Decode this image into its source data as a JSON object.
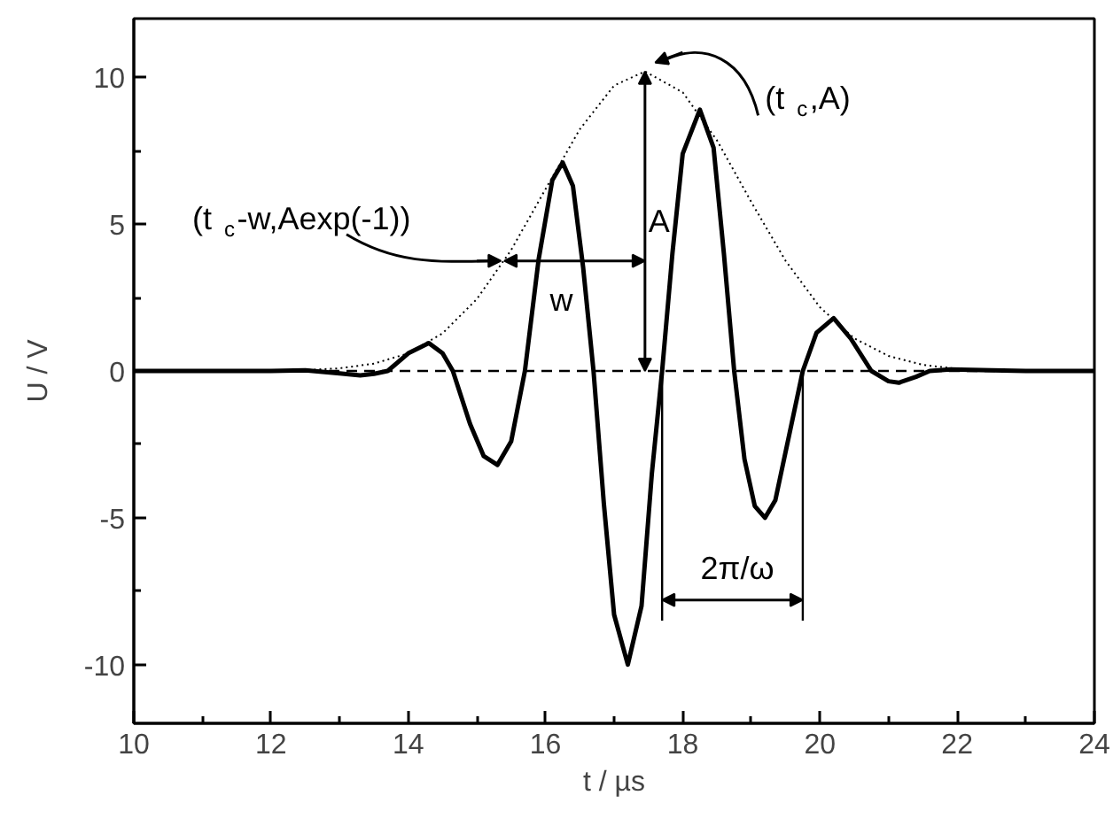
{
  "chart_data": {
    "type": "line",
    "xlabel": "t / µs",
    "ylabel": "U / V",
    "xlim": [
      10,
      24
    ],
    "ylim": [
      -12,
      12
    ],
    "xticks": [
      10,
      {
        "value": 11,
        "label": null
      },
      12,
      {
        "value": 13,
        "label": null
      },
      14,
      {
        "value": 15,
        "label": null
      },
      16,
      {
        "value": 17,
        "label": null
      },
      18,
      {
        "value": 19,
        "label": null
      },
      20,
      {
        "value": 21,
        "label": null
      },
      22,
      {
        "value": 23,
        "label": null
      },
      24
    ],
    "yticks": [
      {
        "value": -10,
        "label": "-10"
      },
      {
        "value": -7.5,
        "label": null
      },
      {
        "value": -5,
        "label": "-5"
      },
      {
        "value": -2.5,
        "label": null
      },
      0,
      {
        "value": 2.5,
        "label": null
      },
      5,
      {
        "value": 7.5,
        "label": null
      },
      10
    ],
    "series": [
      {
        "color": "#000000",
        "line_style": "solid",
        "x": [
          10,
          11,
          12,
          12.5,
          13.0,
          13.3,
          13.5,
          13.7,
          14.0,
          14.3,
          14.5,
          14.65,
          14.9,
          15.1,
          15.3,
          15.5,
          15.7,
          15.9,
          16.1,
          16.25,
          16.4,
          16.55,
          16.7,
          16.85,
          17.0,
          17.2,
          17.4,
          17.55,
          17.7,
          17.85,
          18.0,
          18.25,
          18.45,
          18.6,
          18.75,
          18.9,
          19.05,
          19.2,
          19.35,
          19.55,
          19.75,
          19.95,
          20.2,
          20.45,
          20.75,
          21.0,
          21.15,
          21.4,
          21.6,
          21.9,
          22.5,
          23,
          24
        ],
        "values": [
          0,
          0,
          0,
          0.02,
          -0.08,
          -0.15,
          -0.1,
          0,
          0.6,
          0.95,
          0.6,
          0,
          -1.8,
          -2.9,
          -3.2,
          -2.4,
          0,
          3.8,
          6.5,
          7.1,
          6.3,
          3.5,
          0,
          -4.5,
          -8.3,
          -10.0,
          -8.0,
          -3.5,
          0,
          4.0,
          7.4,
          8.9,
          7.6,
          4.0,
          0,
          -3.0,
          -4.6,
          -5.0,
          -4.4,
          -2.2,
          0,
          1.3,
          1.8,
          1.1,
          0,
          -0.35,
          -0.4,
          -0.2,
          0,
          0.05,
          0.02,
          0,
          0
        ]
      },
      {
        "color": "#000000",
        "line_style": "dotted",
        "x": [
          11,
          12,
          12.5,
          13,
          13.5,
          14,
          14.5,
          15,
          15.5,
          16,
          16.5,
          17,
          17.45,
          18,
          18.5,
          19,
          19.5,
          20,
          20.5,
          21,
          21.5,
          22,
          22.5,
          23,
          24
        ],
        "values": [
          0,
          0.01,
          0.03,
          0.09,
          0.25,
          0.6,
          1.28,
          2.45,
          4.12,
          6.19,
          8.23,
          9.72,
          10.2,
          9.49,
          7.85,
          5.75,
          3.75,
          2.17,
          1.11,
          0.51,
          0.21,
          0.07,
          0.02,
          0,
          0
        ]
      }
    ],
    "ref_lines": [
      {
        "axis": "y",
        "value": 0,
        "color": "#000000",
        "line_style": "dashed"
      },
      {
        "axis": "x",
        "value": 17.7,
        "color": "#000000",
        "line_style": "solid"
      },
      {
        "axis": "x",
        "value": 19.75,
        "color": "#000000",
        "line_style": "solid"
      }
    ],
    "annotations": [
      {
        "text": "(t$_{c}$-w,Aexp(-1))",
        "x": 15.4,
        "y": 3.75
      },
      "(t$_{c}$,A)",
      "A",
      {
        "text": "w",
        "x": 16.4,
        "y": 3.75
      },
      "2π/ω"
    ]
  }
}
